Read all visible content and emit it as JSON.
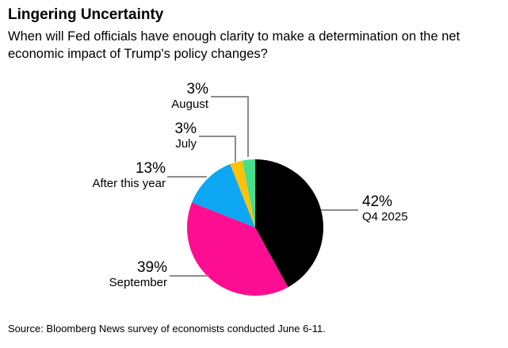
{
  "header": {
    "title": "Lingering Uncertainty",
    "subtitle": "When will Fed officials have enough clarity to make a determination on the net economic impact of Trump's policy changes?"
  },
  "chart_data": {
    "type": "pie",
    "title": "Lingering Uncertainty",
    "question": "When will Fed officials have enough clarity to make a determination on the net economic impact of Trump's policy changes?",
    "unit": "%",
    "start_angle_deg_from_top": 0,
    "direction": "clockwise",
    "categories": [
      "Q4 2025",
      "September",
      "After this year",
      "July",
      "August"
    ],
    "values": [
      42,
      39,
      13,
      3,
      3
    ],
    "slices": [
      {
        "label": "Q4 2025",
        "value": 42,
        "pct_label": "42%",
        "color": "#000000"
      },
      {
        "label": "September",
        "value": 39,
        "pct_label": "39%",
        "color": "#fc0d92"
      },
      {
        "label": "After this year",
        "value": 13,
        "pct_label": "13%",
        "color": "#0da6f2"
      },
      {
        "label": "July",
        "value": 3,
        "pct_label": "3%",
        "color": "#ffc20a"
      },
      {
        "label": "August",
        "value": 3,
        "pct_label": "3%",
        "color": "#44e08c"
      }
    ],
    "leader_line_color": "#8c8c8c",
    "legend_position": "none",
    "labels_style": "external callouts with leader lines"
  },
  "footer": {
    "source": "Source: Bloomberg News survey of economists conducted June 6-11."
  }
}
